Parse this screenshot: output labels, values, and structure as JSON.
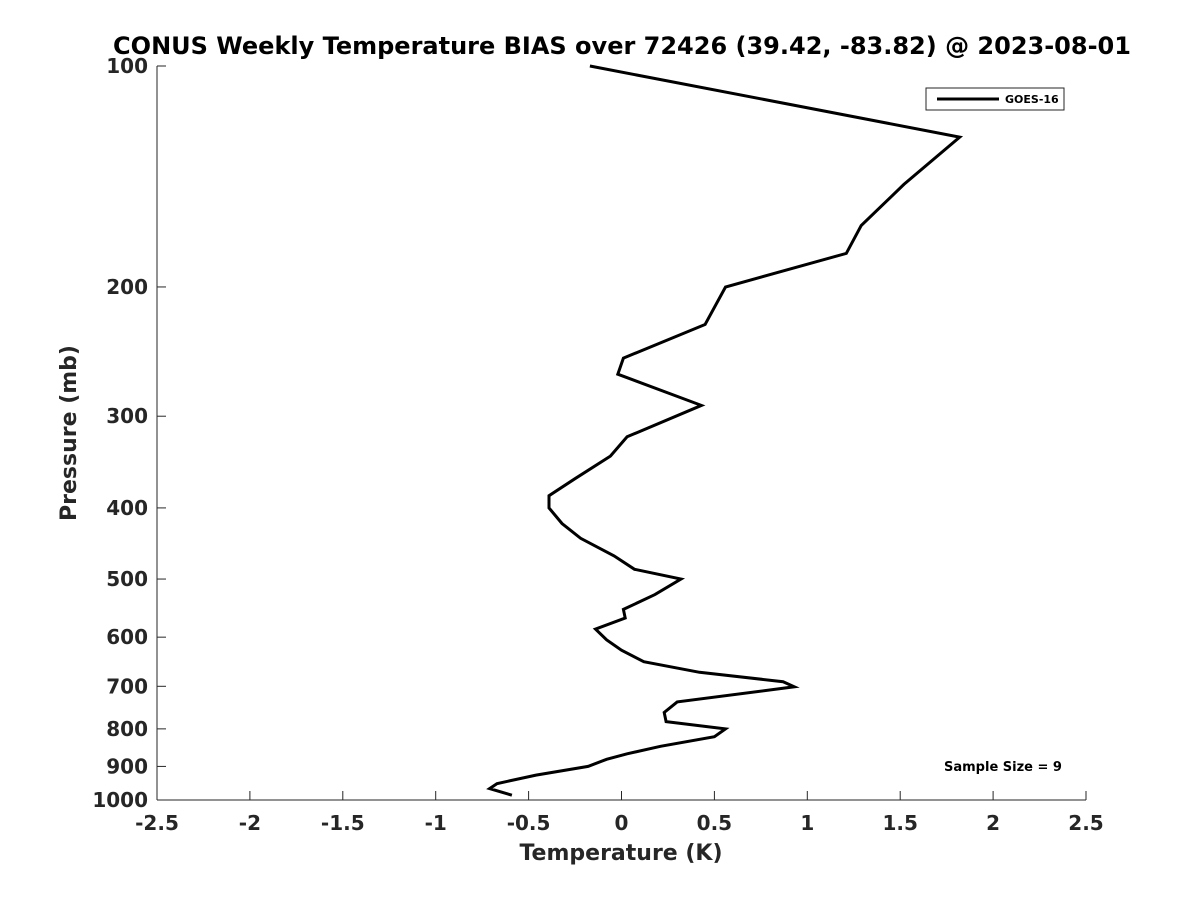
{
  "chart_data": {
    "type": "line",
    "title": "CONUS Weekly Temperature BIAS over 72426 (39.42, -83.82) @ 2023-08-01",
    "xlabel": "Temperature (K)",
    "ylabel": "Pressure (mb)",
    "xlim": [
      -2.5,
      2.5
    ],
    "ylim": [
      100,
      1000
    ],
    "y_scale": "log",
    "y_reversed": true,
    "x_ticks": [
      "-2.5",
      "-2",
      "-1.5",
      "-1",
      "-0.5",
      "0",
      "0.5",
      "1",
      "1.5",
      "2",
      "2.5"
    ],
    "x_tick_values": [
      -2.5,
      -2,
      -1.5,
      -1,
      -0.5,
      0,
      0.5,
      1,
      1.5,
      2,
      2.5
    ],
    "y_ticks": [
      "100",
      "200",
      "300",
      "400",
      "500",
      "600",
      "700",
      "800",
      "900",
      "1000"
    ],
    "y_tick_values": [
      100,
      200,
      300,
      400,
      500,
      600,
      700,
      800,
      900,
      1000
    ],
    "grid": false,
    "legend_position": "top-right",
    "series": [
      {
        "name": "GOES-16",
        "color": "#000000",
        "points": [
          {
            "x": -0.17,
            "p": 100
          },
          {
            "x": 1.82,
            "p": 125
          },
          {
            "x": 1.52,
            "p": 145
          },
          {
            "x": 1.29,
            "p": 165
          },
          {
            "x": 1.21,
            "p": 180
          },
          {
            "x": 0.56,
            "p": 200
          },
          {
            "x": 0.45,
            "p": 225
          },
          {
            "x": 0.01,
            "p": 250
          },
          {
            "x": -0.02,
            "p": 263
          },
          {
            "x": 0.43,
            "p": 290
          },
          {
            "x": 0.03,
            "p": 320
          },
          {
            "x": -0.06,
            "p": 340
          },
          {
            "x": -0.25,
            "p": 365
          },
          {
            "x": -0.39,
            "p": 385
          },
          {
            "x": -0.39,
            "p": 400
          },
          {
            "x": -0.32,
            "p": 420
          },
          {
            "x": -0.22,
            "p": 440
          },
          {
            "x": -0.04,
            "p": 465
          },
          {
            "x": 0.07,
            "p": 485
          },
          {
            "x": 0.32,
            "p": 500
          },
          {
            "x": 0.18,
            "p": 525
          },
          {
            "x": 0.01,
            "p": 550
          },
          {
            "x": 0.02,
            "p": 565
          },
          {
            "x": -0.14,
            "p": 585
          },
          {
            "x": -0.08,
            "p": 605
          },
          {
            "x": 0.0,
            "p": 625
          },
          {
            "x": 0.12,
            "p": 648
          },
          {
            "x": 0.42,
            "p": 670
          },
          {
            "x": 0.87,
            "p": 690
          },
          {
            "x": 0.93,
            "p": 701
          },
          {
            "x": 0.3,
            "p": 735
          },
          {
            "x": 0.23,
            "p": 760
          },
          {
            "x": 0.24,
            "p": 782
          },
          {
            "x": 0.56,
            "p": 800
          },
          {
            "x": 0.5,
            "p": 820
          },
          {
            "x": 0.21,
            "p": 845
          },
          {
            "x": 0.03,
            "p": 865
          },
          {
            "x": -0.08,
            "p": 880
          },
          {
            "x": -0.18,
            "p": 900
          },
          {
            "x": -0.46,
            "p": 925
          },
          {
            "x": -0.67,
            "p": 950
          },
          {
            "x": -0.71,
            "p": 965
          },
          {
            "x": -0.59,
            "p": 985
          }
        ]
      }
    ],
    "annotation": "Sample Size = 9"
  }
}
